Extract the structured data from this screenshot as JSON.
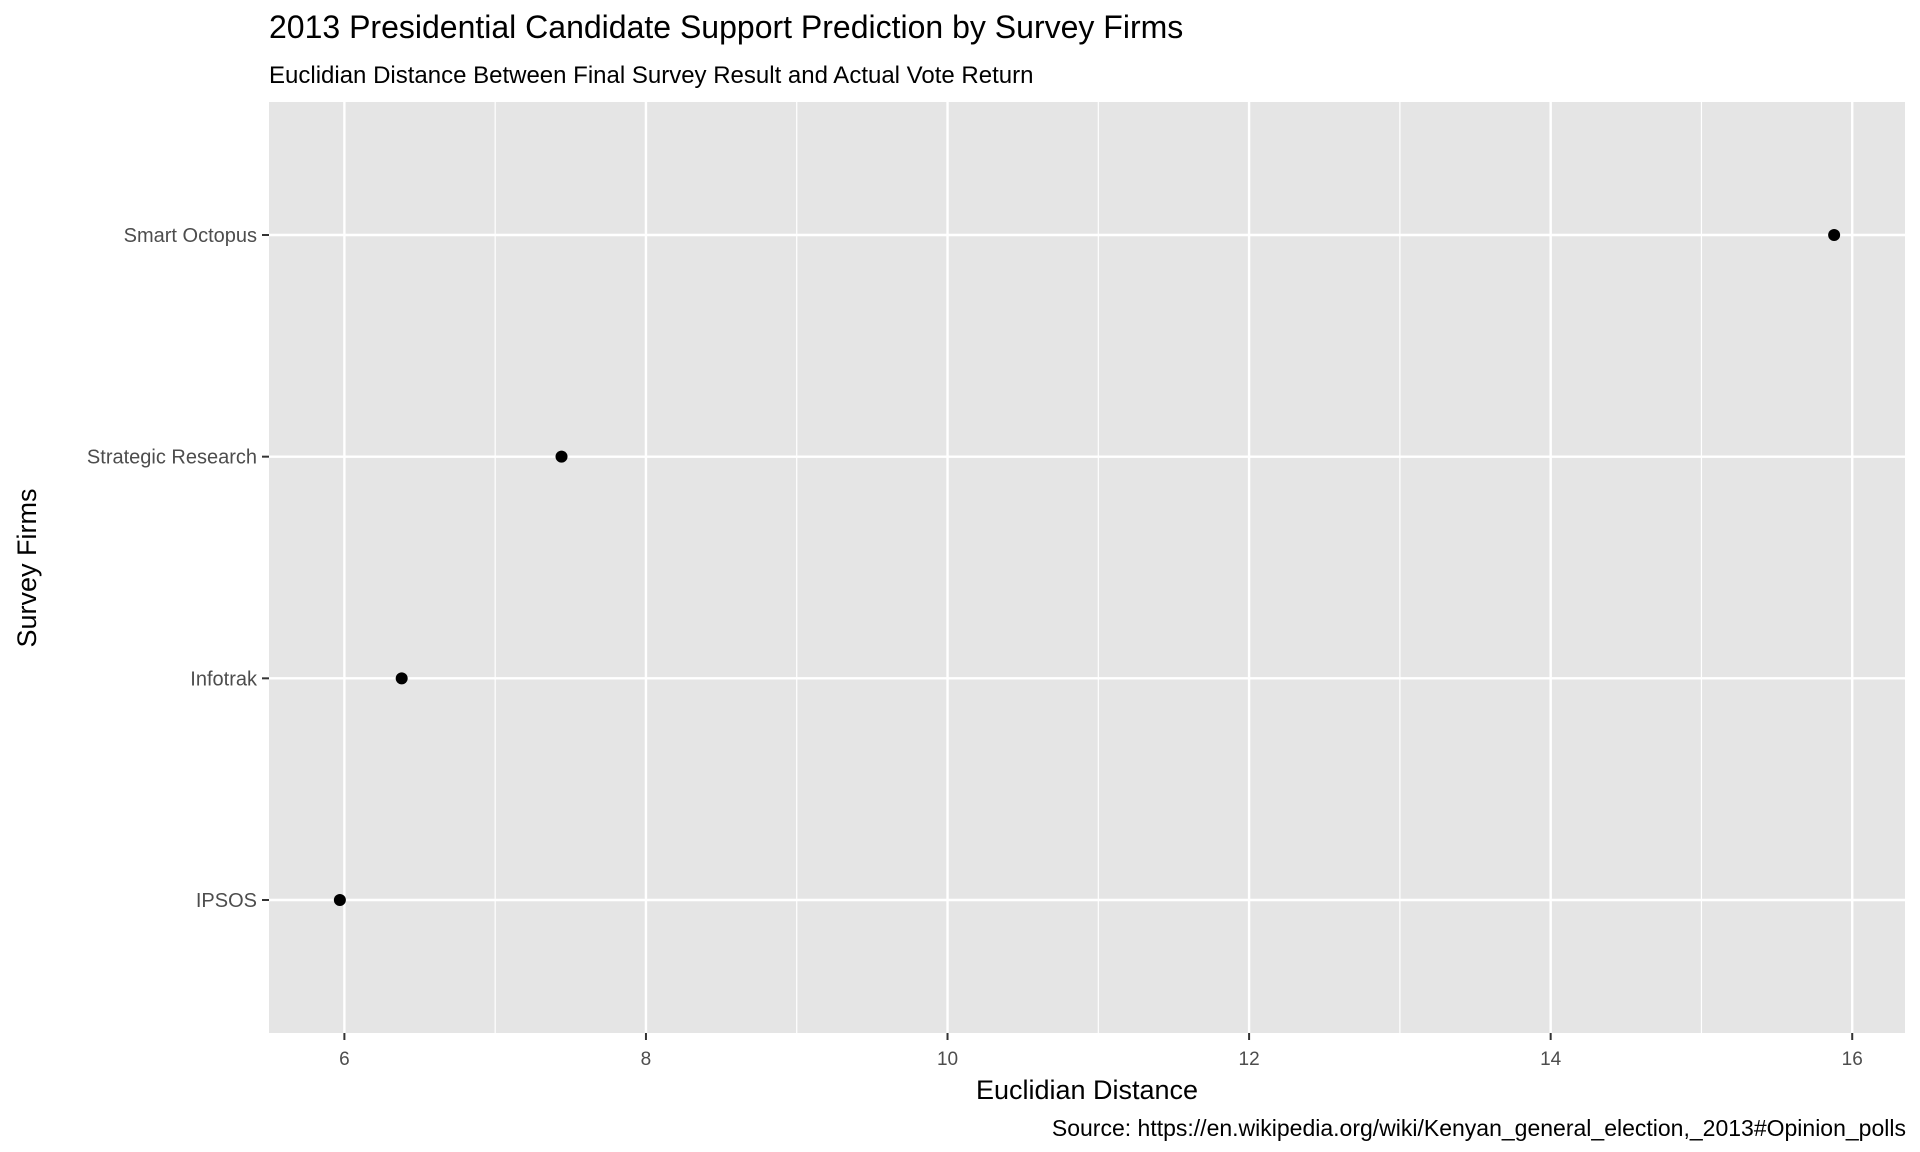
{
  "chart_data": {
    "type": "scatter",
    "title": "2013 Presidential Candidate Support Prediction by Survey Firms",
    "subtitle": "Euclidian Distance Between Final Survey Result and Actual Vote Return",
    "xlabel": "Euclidian Distance",
    "ylabel": "Survey Firms",
    "caption": "Source: https://en.wikipedia.org/wiki/Kenyan_general_election,_2013#Opinion_polls",
    "categories": [
      "IPSOS",
      "Infotrak",
      "Strategic Research",
      "Smart Octopus"
    ],
    "values": [
      5.97,
      6.38,
      7.44,
      15.88
    ],
    "x_ticks": [
      6,
      8,
      10,
      12,
      14,
      16
    ],
    "x_tick_labels": [
      "6",
      "8",
      "10",
      "12",
      "14",
      "16"
    ],
    "xlim": [
      5.5,
      16.35
    ],
    "grid": true,
    "legend": "none",
    "colors": {
      "panel_background": "#e5e5e5",
      "grid_line": "#ffffff",
      "point": "#000000",
      "axis_text": "#4d4d4d",
      "tick_mark": "#333333",
      "title_text": "#000000"
    }
  }
}
